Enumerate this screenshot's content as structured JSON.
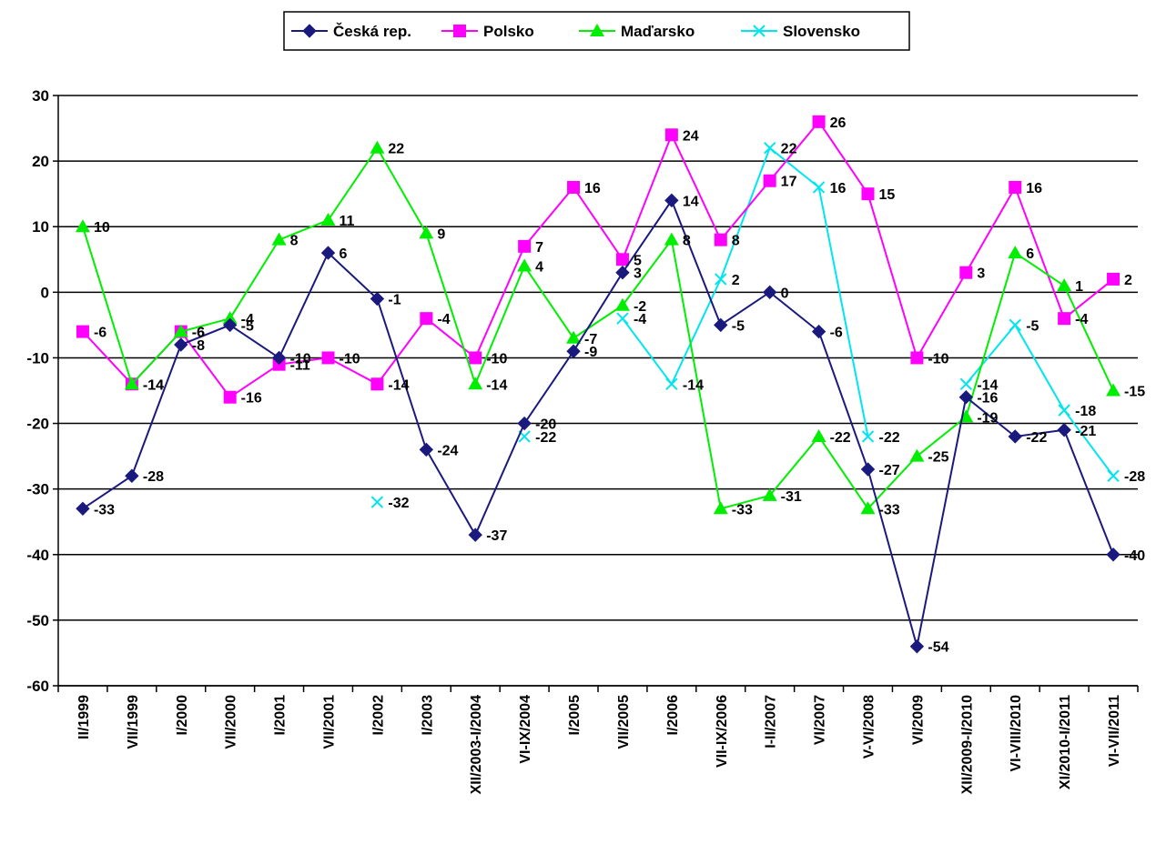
{
  "chart_data": {
    "type": "line",
    "title": "",
    "xlabel": "",
    "ylabel": "",
    "ylim": [
      -60,
      30
    ],
    "yticks": [
      30,
      20,
      10,
      0,
      -10,
      -20,
      -30,
      -40,
      -50,
      -60
    ],
    "grid": "horizontal",
    "legend_position": "top-center",
    "categories": [
      "II/1999",
      "VII/1999",
      "I/2000",
      "VII/2000",
      "I/2001",
      "VII/2001",
      "I/2002",
      "I/2003",
      "XII/2003-I/2004",
      "VI-IX/2004",
      "I/2005",
      "VII/2005",
      "I/2006",
      "VII-IX/2006",
      "I-II/2007",
      "VI/2007",
      "V-VI/2008",
      "VI/2009",
      "XII/2009-I/2010",
      "VI-VIII/2010",
      "XI/2010-I/2011",
      "VI-VII/2011"
    ],
    "series": [
      {
        "name": "Česká rep.",
        "color": "#1a1a7e",
        "marker": "diamond",
        "values": [
          -33,
          -28,
          -8,
          -5,
          -10,
          6,
          -1,
          -24,
          -37,
          -20,
          -9,
          3,
          14,
          -5,
          0,
          -6,
          -27,
          -54,
          -16,
          -22,
          -21,
          -40
        ]
      },
      {
        "name": "Polsko",
        "color": "#ff00ff",
        "marker": "square",
        "values": [
          -6,
          -14,
          -6,
          -16,
          -11,
          -10,
          -14,
          -4,
          -10,
          7,
          16,
          5,
          24,
          8,
          17,
          26,
          15,
          -10,
          3,
          16,
          -4,
          2
        ]
      },
      {
        "name": "Maďarsko",
        "color": "#00ee00",
        "marker": "triangle",
        "values": [
          10,
          -14,
          -6,
          -4,
          8,
          11,
          22,
          9,
          -14,
          4,
          -7,
          -2,
          8,
          -33,
          -31,
          -22,
          -33,
          -25,
          -19,
          6,
          1,
          -15
        ]
      },
      {
        "name": "Slovensko",
        "color": "#00e5ee",
        "marker": "x",
        "values": [
          null,
          null,
          null,
          null,
          null,
          null,
          -32,
          null,
          null,
          -22,
          null,
          -4,
          -14,
          2,
          22,
          16,
          -22,
          null,
          -14,
          -5,
          -18,
          -28
        ]
      }
    ]
  }
}
